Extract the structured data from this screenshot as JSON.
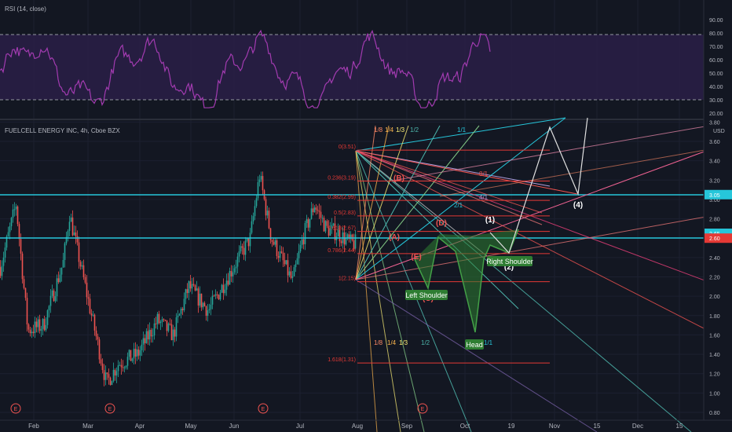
{
  "rsi_pane": {
    "label": "RSI (14, close)",
    "ticks": [
      "90.00",
      "80.00",
      "70.00",
      "60.00",
      "50.00",
      "40.00",
      "30.00",
      "20.00"
    ],
    "tick_values": [
      90,
      80,
      70,
      60,
      50,
      40,
      30,
      20
    ],
    "upper_band": 70,
    "lower_band": 30,
    "line_color": "#a23bb0",
    "band_fill": "#2a1e47"
  },
  "price_pane": {
    "title": "FUELCELL ENERGY INC, 4h, Cboe BZX",
    "currency": "USD",
    "ticks": [
      "3.80",
      "3.60",
      "3.40",
      "3.20",
      "3.00",
      "2.80",
      "2.60",
      "2.40",
      "2.20",
      "2.00",
      "1.80",
      "1.60",
      "1.40",
      "1.20",
      "1.00",
      "0.80"
    ],
    "tick_values": [
      3.8,
      3.6,
      3.4,
      3.2,
      3.0,
      2.8,
      2.6,
      2.4,
      2.2,
      2.0,
      1.8,
      1.6,
      1.4,
      1.2,
      1.0,
      0.8
    ],
    "price_badges": [
      {
        "text": "3.05",
        "value": 3.05,
        "color": "#26c6da"
      },
      {
        "text": "2.65",
        "value": 2.65,
        "color": "#26c6da"
      },
      {
        "text": "2.60",
        "value": 2.6,
        "color": "#e53935"
      }
    ],
    "horizontal_levels": [
      3.04,
      2.64
    ]
  },
  "x_axis": {
    "labels": [
      "Feb",
      "Mar",
      "Apr",
      "May",
      "Jun",
      "Jul",
      "Aug",
      "Sep",
      "Oct",
      "19",
      "Nov",
      "15",
      "Dec",
      "15"
    ]
  },
  "earnings_marker": "E",
  "fib_levels": [
    {
      "label": "0(3.51)",
      "value": 3.51
    },
    {
      "label": "0.236(3.19)",
      "value": 3.19
    },
    {
      "label": "0.382(2.99)",
      "value": 2.99
    },
    {
      "label": "0.5(2.83)",
      "value": 2.83
    },
    {
      "label": "0.618(2.67)",
      "value": 2.67
    },
    {
      "label": "0.786(2.44)",
      "value": 2.44
    },
    {
      "label": "1(2.15)",
      "value": 2.15
    },
    {
      "label": "1.618(1.31)",
      "value": 1.31
    }
  ],
  "fan_labels_top": [
    "1/8",
    "1/4",
    "1/3",
    "1/2",
    "1/1"
  ],
  "fan_labels_bottom": [
    "1/8",
    "1/4",
    "1/3",
    "1/2",
    "1/1"
  ],
  "fan_labels_right": [
    "8/1",
    "4/1",
    "2/1"
  ],
  "wave_labels": [
    "(A)",
    "(B)",
    "(C)",
    "(D)",
    "(E)",
    "(1)",
    "(2)",
    "(4)"
  ],
  "pattern_labels": {
    "left": "Left Shoulder",
    "head": "Head",
    "right": "Right Shoulder"
  },
  "colors": {
    "bg": "#131722",
    "grid": "#1e2230",
    "axis_text": "#b2b5be",
    "up": "#26a69a",
    "down": "#ef5350",
    "cyan": "#26c6da",
    "fib": "#e53935",
    "pattern": "#2e7d32"
  }
}
